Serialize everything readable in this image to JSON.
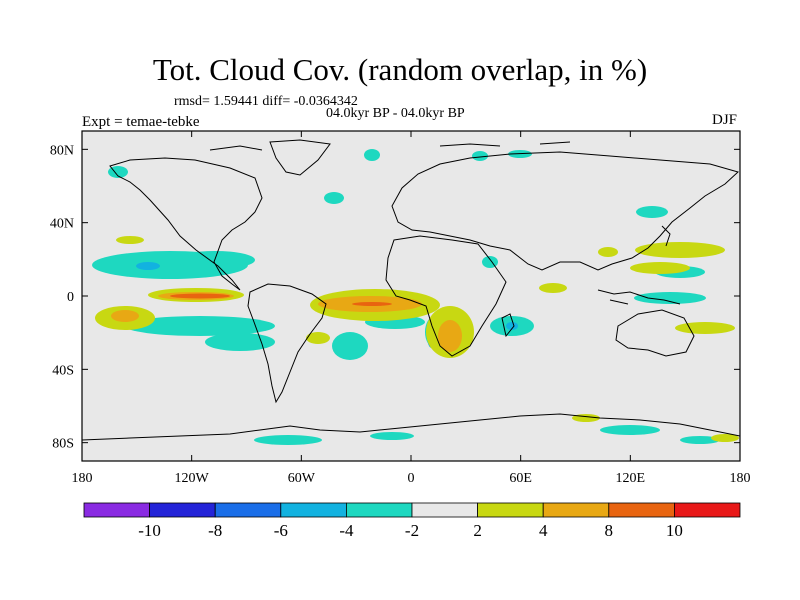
{
  "header": {
    "title": "Tot. Cloud Cov. (random overlap, in %)",
    "stats": "rmsd= 1.59441 diff= -0.0364342",
    "period": "04.0kyr BP - 04.0kyr BP",
    "experiment": "Expt = temae-tebke",
    "season": "DJF"
  },
  "map": {
    "background_color": "#e8e8e8",
    "coastline_color": "#000000",
    "lon_ticks": [
      "180",
      "120W",
      "60W",
      "0",
      "60E",
      "120E",
      "180"
    ],
    "lat_ticks": [
      "80N",
      "40N",
      "0",
      "40S",
      "80S"
    ]
  },
  "colorbar": {
    "colors": [
      "#8a2be2",
      "#2424d8",
      "#1a6ee8",
      "#12b2e0",
      "#1ed8c0",
      "#e8e8e8",
      "#c8d812",
      "#e8a814",
      "#e86410",
      "#e81818"
    ],
    "labels": [
      "-10",
      "-8",
      "-6",
      "-4",
      "-2",
      "2",
      "4",
      "8",
      "10"
    ]
  }
}
